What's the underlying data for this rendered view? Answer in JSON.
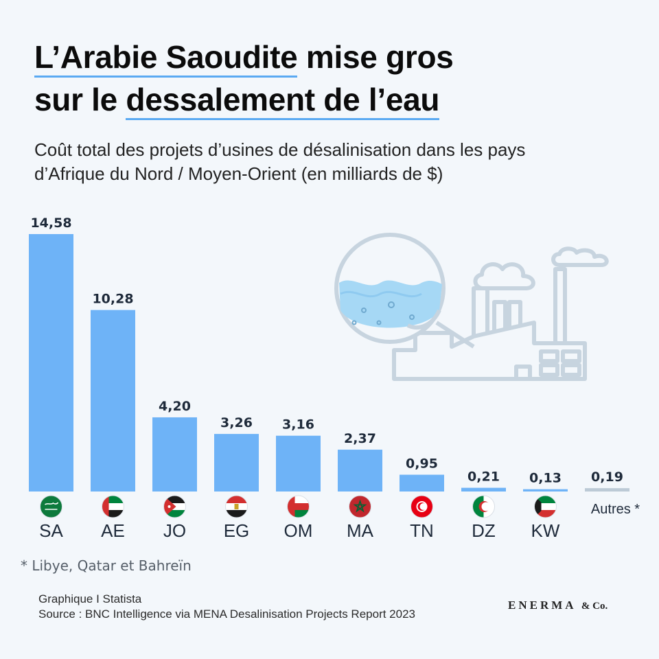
{
  "title": {
    "line1_highlight": "L’Arabie Saoudite",
    "line1_rest": " mise gros",
    "line2_start": "sur le ",
    "line2_highlight": "dessalement de l’eau"
  },
  "subtitle": "Coût total des projets d’usines de désalinisation dans les pays d’Afrique du Nord / Moyen-Orient (en milliards de $)",
  "chart_data": {
    "type": "bar",
    "categories": [
      "SA",
      "AE",
      "JO",
      "EG",
      "OM",
      "MA",
      "TN",
      "DZ",
      "KW",
      "Autres *"
    ],
    "values": [
      14.58,
      10.28,
      4.2,
      3.26,
      3.16,
      2.37,
      0.95,
      0.21,
      0.13,
      0.19
    ],
    "value_labels": [
      "14,58",
      "10,28",
      "4,20",
      "3,26",
      "3,16",
      "2,37",
      "0,95",
      "0,21",
      "0,13",
      "0,19"
    ],
    "ylim": [
      0,
      14.58
    ],
    "grid": false,
    "colors": {
      "bar": "#6eb3f7",
      "others_bar": "#bccad6"
    }
  },
  "footnote": "* Libye, Qatar et Bahreïn",
  "credits": {
    "line1": "Graphique I Statista",
    "line2": "Source : BNC Intelligence via MENA Desalinisation Projects Report 2023"
  },
  "brand": {
    "name": "ENERMA",
    "suffix": "& Co."
  },
  "icons": {
    "illustration": "desalination-plant-icon"
  },
  "colors": {
    "background": "#f3f7fb",
    "underline": "#5aa9f2",
    "illustration": "#c7d4df",
    "water": "#a6d8f5"
  }
}
